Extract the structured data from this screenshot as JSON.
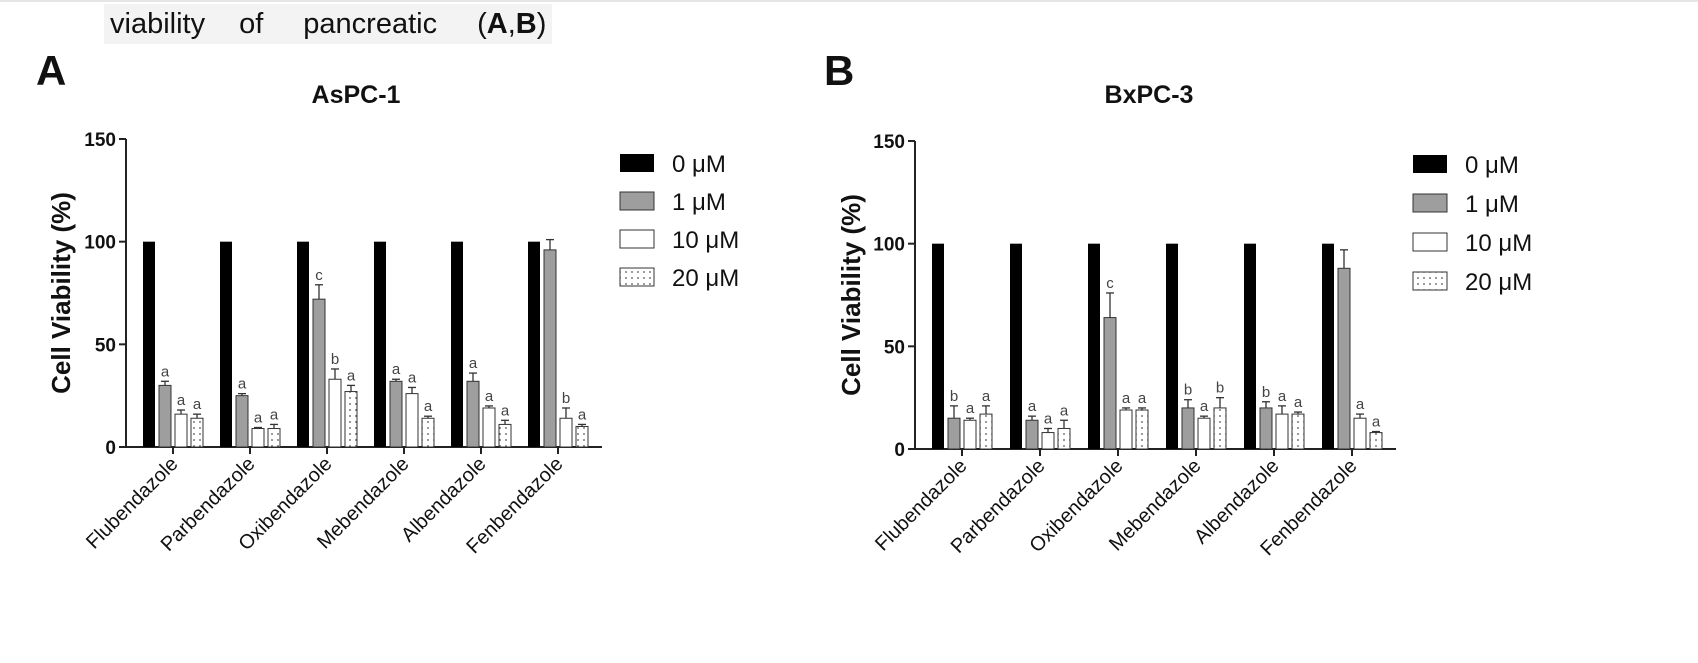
{
  "caption": {
    "word1": "viability",
    "word2": "of",
    "word3": "pancreatic",
    "open": "(",
    "label_a": "A",
    "comma": ",",
    "label_b": "B",
    "close": ")"
  },
  "colors": {
    "c0": "#000000",
    "c1": "#9e9e9e",
    "c10": "#ffffff",
    "c20": "#ffffff",
    "axis": "#222222"
  },
  "chart_data": [
    {
      "type": "bar",
      "panel": "A",
      "title": "AsPC-1",
      "ylabel": "Cell Viability (%)",
      "xlabel": "",
      "ylim": [
        0,
        150
      ],
      "yticks": [
        "0",
        "50",
        "100",
        "150"
      ],
      "categories": [
        "Flubendazole",
        "Parbendazole",
        "Oxibendazole",
        "Mebendazole",
        "Albendazole",
        "Fenbendazole"
      ],
      "series": [
        {
          "name": "0 μM",
          "pattern": "solid-black",
          "values": [
            100,
            100,
            100,
            100,
            100,
            100
          ],
          "errors": [
            0,
            0,
            0,
            0,
            0,
            0
          ],
          "labels": [
            "",
            "",
            "",
            "",
            "",
            ""
          ]
        },
        {
          "name": "1 μM",
          "pattern": "gray",
          "values": [
            30,
            25,
            72,
            32,
            32,
            96
          ],
          "errors": [
            2,
            1,
            7,
            1,
            4,
            5
          ],
          "labels": [
            "a",
            "a",
            "c",
            "a",
            "a",
            ""
          ]
        },
        {
          "name": "10 μM",
          "pattern": "white",
          "values": [
            16,
            9,
            33,
            26,
            19,
            14
          ],
          "errors": [
            2,
            0.5,
            5,
            3,
            1,
            5
          ],
          "labels": [
            "a",
            "a",
            "b",
            "a",
            "a",
            "b"
          ]
        },
        {
          "name": "20 μM",
          "pattern": "dotted",
          "values": [
            14,
            9,
            27,
            14,
            11,
            10
          ],
          "errors": [
            2,
            2,
            3,
            1,
            2,
            1
          ],
          "labels": [
            "a",
            "a",
            "a",
            "a",
            "a",
            "a"
          ]
        }
      ],
      "legend": "right"
    },
    {
      "type": "bar",
      "panel": "B",
      "title": "BxPC-3",
      "ylabel": "Cell Viability (%)",
      "xlabel": "",
      "ylim": [
        0,
        150
      ],
      "yticks": [
        "0",
        "50",
        "100",
        "150"
      ],
      "categories": [
        "Flubendazole",
        "Parbendazole",
        "Oxibendazole",
        "Mebendazole",
        "Albendazole",
        "Fenbendazole"
      ],
      "series": [
        {
          "name": "0 μM",
          "pattern": "solid-black",
          "values": [
            100,
            100,
            100,
            100,
            100,
            100
          ],
          "errors": [
            0,
            0,
            0,
            0,
            0,
            0
          ],
          "labels": [
            "",
            "",
            "",
            "",
            "",
            ""
          ]
        },
        {
          "name": "1 μM",
          "pattern": "gray",
          "values": [
            15,
            14,
            64,
            20,
            20,
            88
          ],
          "errors": [
            6,
            2,
            12,
            4,
            3,
            9
          ],
          "labels": [
            "b",
            "a",
            "c",
            "b",
            "b",
            ""
          ]
        },
        {
          "name": "10 μM",
          "pattern": "white",
          "values": [
            14,
            8,
            19,
            15,
            17,
            15
          ],
          "errors": [
            1,
            2,
            1,
            1,
            4,
            2
          ],
          "labels": [
            "a",
            "a",
            "a",
            "a",
            "a",
            "a"
          ]
        },
        {
          "name": "20 μM",
          "pattern": "dotted",
          "values": [
            17,
            10,
            19,
            20,
            17,
            8
          ],
          "errors": [
            4,
            4,
            1,
            5,
            1,
            0.5
          ],
          "labels": [
            "a",
            "a",
            "a",
            "b",
            "a",
            "a"
          ]
        }
      ],
      "legend": "right"
    }
  ]
}
